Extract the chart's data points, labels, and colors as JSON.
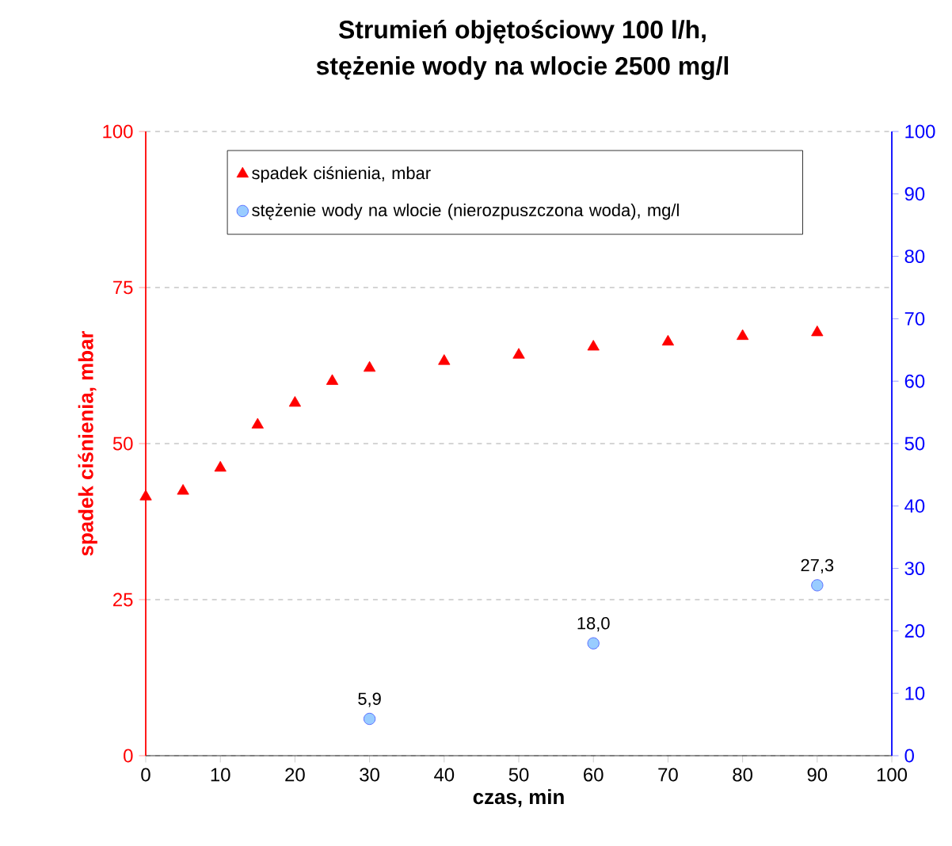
{
  "chart_data": {
    "type": "scatter",
    "title": "Strumień objętościowy 100 l/h,",
    "subtitle": "stężenie wody na wlocie 2500 mg/l",
    "xlabel": "czas, min",
    "ylabel": "spadek ciśnienia, mbar",
    "xlim": [
      0,
      100
    ],
    "xticks": [
      0,
      10,
      20,
      30,
      40,
      50,
      60,
      70,
      80,
      90,
      100
    ],
    "ylim": [
      0,
      100
    ],
    "yticks": [
      0,
      25,
      50,
      75,
      100
    ],
    "y2lim": [
      0,
      100
    ],
    "y2ticks": [
      0,
      10,
      20,
      30,
      40,
      50,
      60,
      70,
      80,
      90,
      100
    ],
    "grid": "y",
    "legend": "top",
    "series": [
      {
        "name": "spadek ciśnienia, mbar",
        "color": "#ff0000",
        "marker": "triangle",
        "x": [
          0,
          5,
          10,
          15,
          20,
          25,
          30,
          40,
          50,
          60,
          70,
          80,
          90
        ],
        "values": [
          41.5,
          42.4,
          46.1,
          53.0,
          56.5,
          60.0,
          62.1,
          63.2,
          64.2,
          65.5,
          66.3,
          67.2,
          67.8
        ]
      },
      {
        "name": "stężenie wody na wlocie (nierozpuszczona woda), mg/l",
        "color": "#99ccff",
        "marker": "circle",
        "axis": "y2",
        "x": [
          30,
          60,
          90
        ],
        "values": [
          5.9,
          18.0,
          27.3
        ],
        "value_labels": [
          "5,9",
          "18,0",
          "27,3"
        ]
      }
    ]
  }
}
